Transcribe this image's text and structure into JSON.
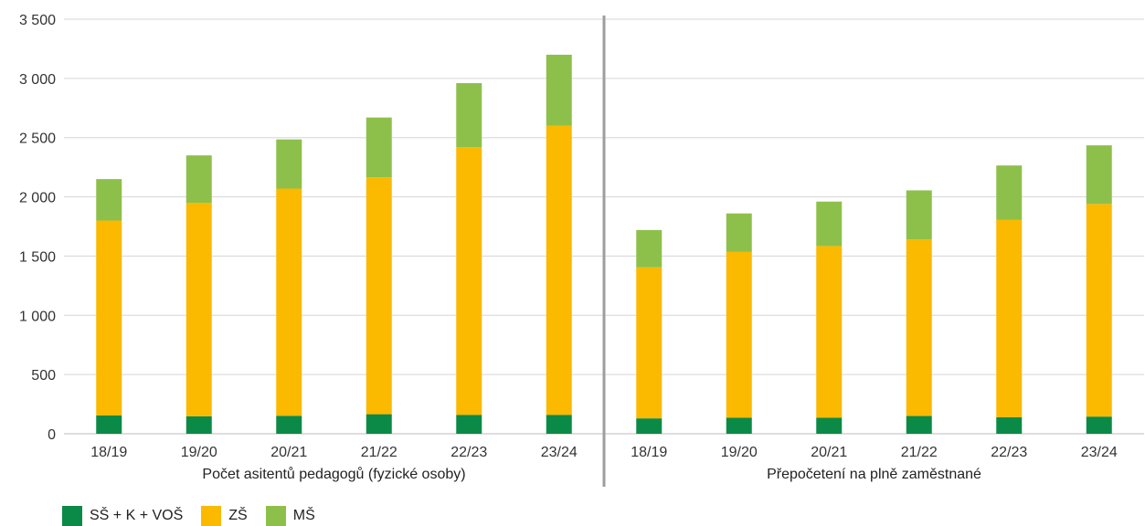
{
  "chart_data": {
    "type": "bar",
    "stacked": true,
    "ylim": [
      0,
      3500
    ],
    "yticks": [
      "0",
      "500",
      "1 000",
      "1 500",
      "2 000",
      "2 500",
      "3 000",
      "3 500"
    ],
    "grid": true,
    "legend_position": "bottom-left",
    "groups": [
      {
        "label": "Počet asitentů pedagogů (fyzické osoby)",
        "categories": [
          "18/19",
          "19/20",
          "20/21",
          "21/22",
          "22/23",
          "23/24"
        ]
      },
      {
        "label": "Přepočetení na plně zaměstnané",
        "categories": [
          "18/19",
          "19/20",
          "20/21",
          "21/22",
          "22/23",
          "23/24"
        ]
      }
    ],
    "series": [
      {
        "name": "SŠ + K + VOŠ",
        "color": "#0b8a47",
        "values": [
          155,
          148,
          152,
          165,
          160,
          160,
          130,
          135,
          135,
          150,
          140,
          145
        ]
      },
      {
        "name": "ZŠ",
        "color": "#fbb900",
        "values": [
          1645,
          1802,
          1918,
          2000,
          2260,
          2440,
          1275,
          1400,
          1450,
          1490,
          1665,
          1795
        ]
      },
      {
        "name": "MŠ",
        "color": "#8dc04a",
        "values": [
          350,
          400,
          415,
          505,
          540,
          600,
          315,
          325,
          375,
          415,
          460,
          495
        ]
      }
    ]
  }
}
